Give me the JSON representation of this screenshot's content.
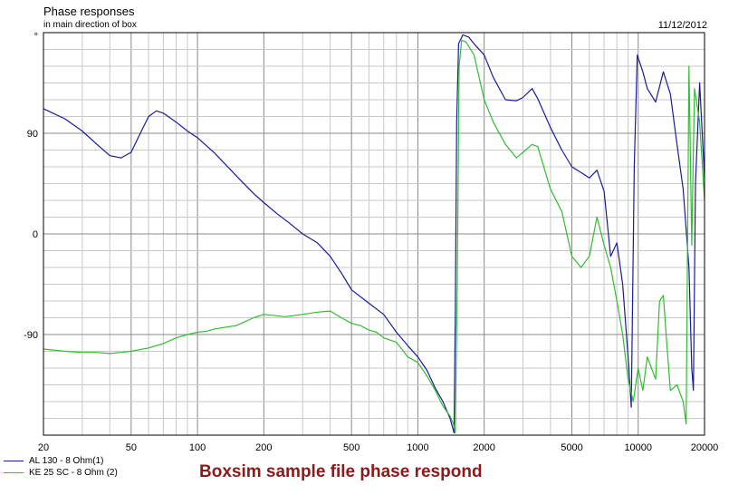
{
  "header": {
    "title": "Phase responses",
    "subtitle": "in main direction of box",
    "date": "11/12/2012"
  },
  "caption": "Boxsim sample file phase respond",
  "chart_data": {
    "type": "line",
    "title": "Phase responses",
    "subtitle": "in main direction of box",
    "x_scale": "log",
    "xlim": [
      20,
      20000
    ],
    "ylim": [
      -180,
      180
    ],
    "x_ticks": [
      20,
      50,
      100,
      200,
      500,
      1000,
      2000,
      5000,
      10000,
      20000
    ],
    "y_ticks": [
      -90,
      0,
      90
    ],
    "y_unit": "°",
    "grid": true,
    "legend_position": "bottom-left",
    "series": [
      {
        "name": "AL 130 - 8 Ohm(1)",
        "color": "#1a1a9c",
        "points": [
          [
            20,
            112
          ],
          [
            25,
            103
          ],
          [
            30,
            92
          ],
          [
            35,
            80
          ],
          [
            40,
            70
          ],
          [
            45,
            68
          ],
          [
            50,
            73
          ],
          [
            55,
            90
          ],
          [
            60,
            105
          ],
          [
            65,
            110
          ],
          [
            70,
            108
          ],
          [
            80,
            100
          ],
          [
            90,
            92
          ],
          [
            100,
            86
          ],
          [
            120,
            72
          ],
          [
            150,
            52
          ],
          [
            180,
            36
          ],
          [
            200,
            28
          ],
          [
            230,
            18
          ],
          [
            260,
            10
          ],
          [
            300,
            0
          ],
          [
            350,
            -8
          ],
          [
            400,
            -20
          ],
          [
            450,
            -35
          ],
          [
            500,
            -50
          ],
          [
            600,
            -62
          ],
          [
            700,
            -72
          ],
          [
            800,
            -88
          ],
          [
            900,
            -100
          ],
          [
            1000,
            -110
          ],
          [
            1100,
            -122
          ],
          [
            1200,
            -138
          ],
          [
            1300,
            -150
          ],
          [
            1400,
            -165
          ],
          [
            1460,
            -178
          ],
          [
            1480,
            -70
          ],
          [
            1500,
            100
          ],
          [
            1530,
            170
          ],
          [
            1600,
            178
          ],
          [
            1700,
            176
          ],
          [
            1800,
            170
          ],
          [
            2000,
            160
          ],
          [
            2200,
            140
          ],
          [
            2500,
            120
          ],
          [
            2800,
            119
          ],
          [
            3000,
            122
          ],
          [
            3300,
            130
          ],
          [
            3500,
            121
          ],
          [
            4000,
            95
          ],
          [
            4500,
            75
          ],
          [
            5000,
            60
          ],
          [
            5500,
            55
          ],
          [
            6000,
            50
          ],
          [
            6500,
            57
          ],
          [
            7000,
            38
          ],
          [
            7500,
            -20
          ],
          [
            8000,
            -8
          ],
          [
            8500,
            -45
          ],
          [
            9000,
            -110
          ],
          [
            9300,
            -155
          ],
          [
            9600,
            60
          ],
          [
            9900,
            160
          ],
          [
            10500,
            145
          ],
          [
            11000,
            130
          ],
          [
            12000,
            118
          ],
          [
            13000,
            145
          ],
          [
            14000,
            125
          ],
          [
            15000,
            80
          ],
          [
            16000,
            40
          ],
          [
            17000,
            -30
          ],
          [
            17500,
            -120
          ],
          [
            17800,
            -140
          ],
          [
            18200,
            45
          ],
          [
            19000,
            135
          ],
          [
            20000,
            50
          ]
        ]
      },
      {
        "name": "KE 25 SC - 8 Ohm  (2)",
        "color": "#33bb33",
        "points": [
          [
            20,
            -103
          ],
          [
            25,
            -105
          ],
          [
            30,
            -106
          ],
          [
            35,
            -106
          ],
          [
            40,
            -107
          ],
          [
            45,
            -106
          ],
          [
            50,
            -105
          ],
          [
            60,
            -102
          ],
          [
            70,
            -98
          ],
          [
            80,
            -93
          ],
          [
            90,
            -90
          ],
          [
            100,
            -88
          ],
          [
            110,
            -87
          ],
          [
            120,
            -85
          ],
          [
            150,
            -82
          ],
          [
            180,
            -75
          ],
          [
            200,
            -72
          ],
          [
            250,
            -74
          ],
          [
            300,
            -72
          ],
          [
            350,
            -70
          ],
          [
            400,
            -69
          ],
          [
            450,
            -75
          ],
          [
            500,
            -80
          ],
          [
            550,
            -82
          ],
          [
            600,
            -86
          ],
          [
            650,
            -88
          ],
          [
            700,
            -93
          ],
          [
            800,
            -97
          ],
          [
            900,
            -110
          ],
          [
            1000,
            -115
          ],
          [
            1100,
            -127
          ],
          [
            1200,
            -140
          ],
          [
            1300,
            -154
          ],
          [
            1400,
            -163
          ],
          [
            1450,
            -170
          ],
          [
            1480,
            -178
          ],
          [
            1510,
            -40
          ],
          [
            1540,
            150
          ],
          [
            1580,
            173
          ],
          [
            1650,
            172
          ],
          [
            1800,
            160
          ],
          [
            2000,
            120
          ],
          [
            2200,
            100
          ],
          [
            2500,
            80
          ],
          [
            2800,
            68
          ],
          [
            3000,
            73
          ],
          [
            3300,
            80
          ],
          [
            3500,
            78
          ],
          [
            4000,
            40
          ],
          [
            4500,
            20
          ],
          [
            5000,
            -20
          ],
          [
            5500,
            -30
          ],
          [
            6000,
            -20
          ],
          [
            6500,
            15
          ],
          [
            7000,
            -10
          ],
          [
            7500,
            -30
          ],
          [
            8000,
            -60
          ],
          [
            8500,
            -90
          ],
          [
            9000,
            -130
          ],
          [
            9500,
            -150
          ],
          [
            10000,
            -120
          ],
          [
            10500,
            -140
          ],
          [
            11000,
            -110
          ],
          [
            12000,
            -130
          ],
          [
            12500,
            -60
          ],
          [
            13000,
            -55
          ],
          [
            13500,
            -100
          ],
          [
            14000,
            -140
          ],
          [
            15000,
            -135
          ],
          [
            16000,
            -150
          ],
          [
            16500,
            -170
          ],
          [
            17000,
            150
          ],
          [
            17500,
            -10
          ],
          [
            18000,
            130
          ],
          [
            19000,
            100
          ],
          [
            20000,
            30
          ]
        ]
      }
    ]
  }
}
